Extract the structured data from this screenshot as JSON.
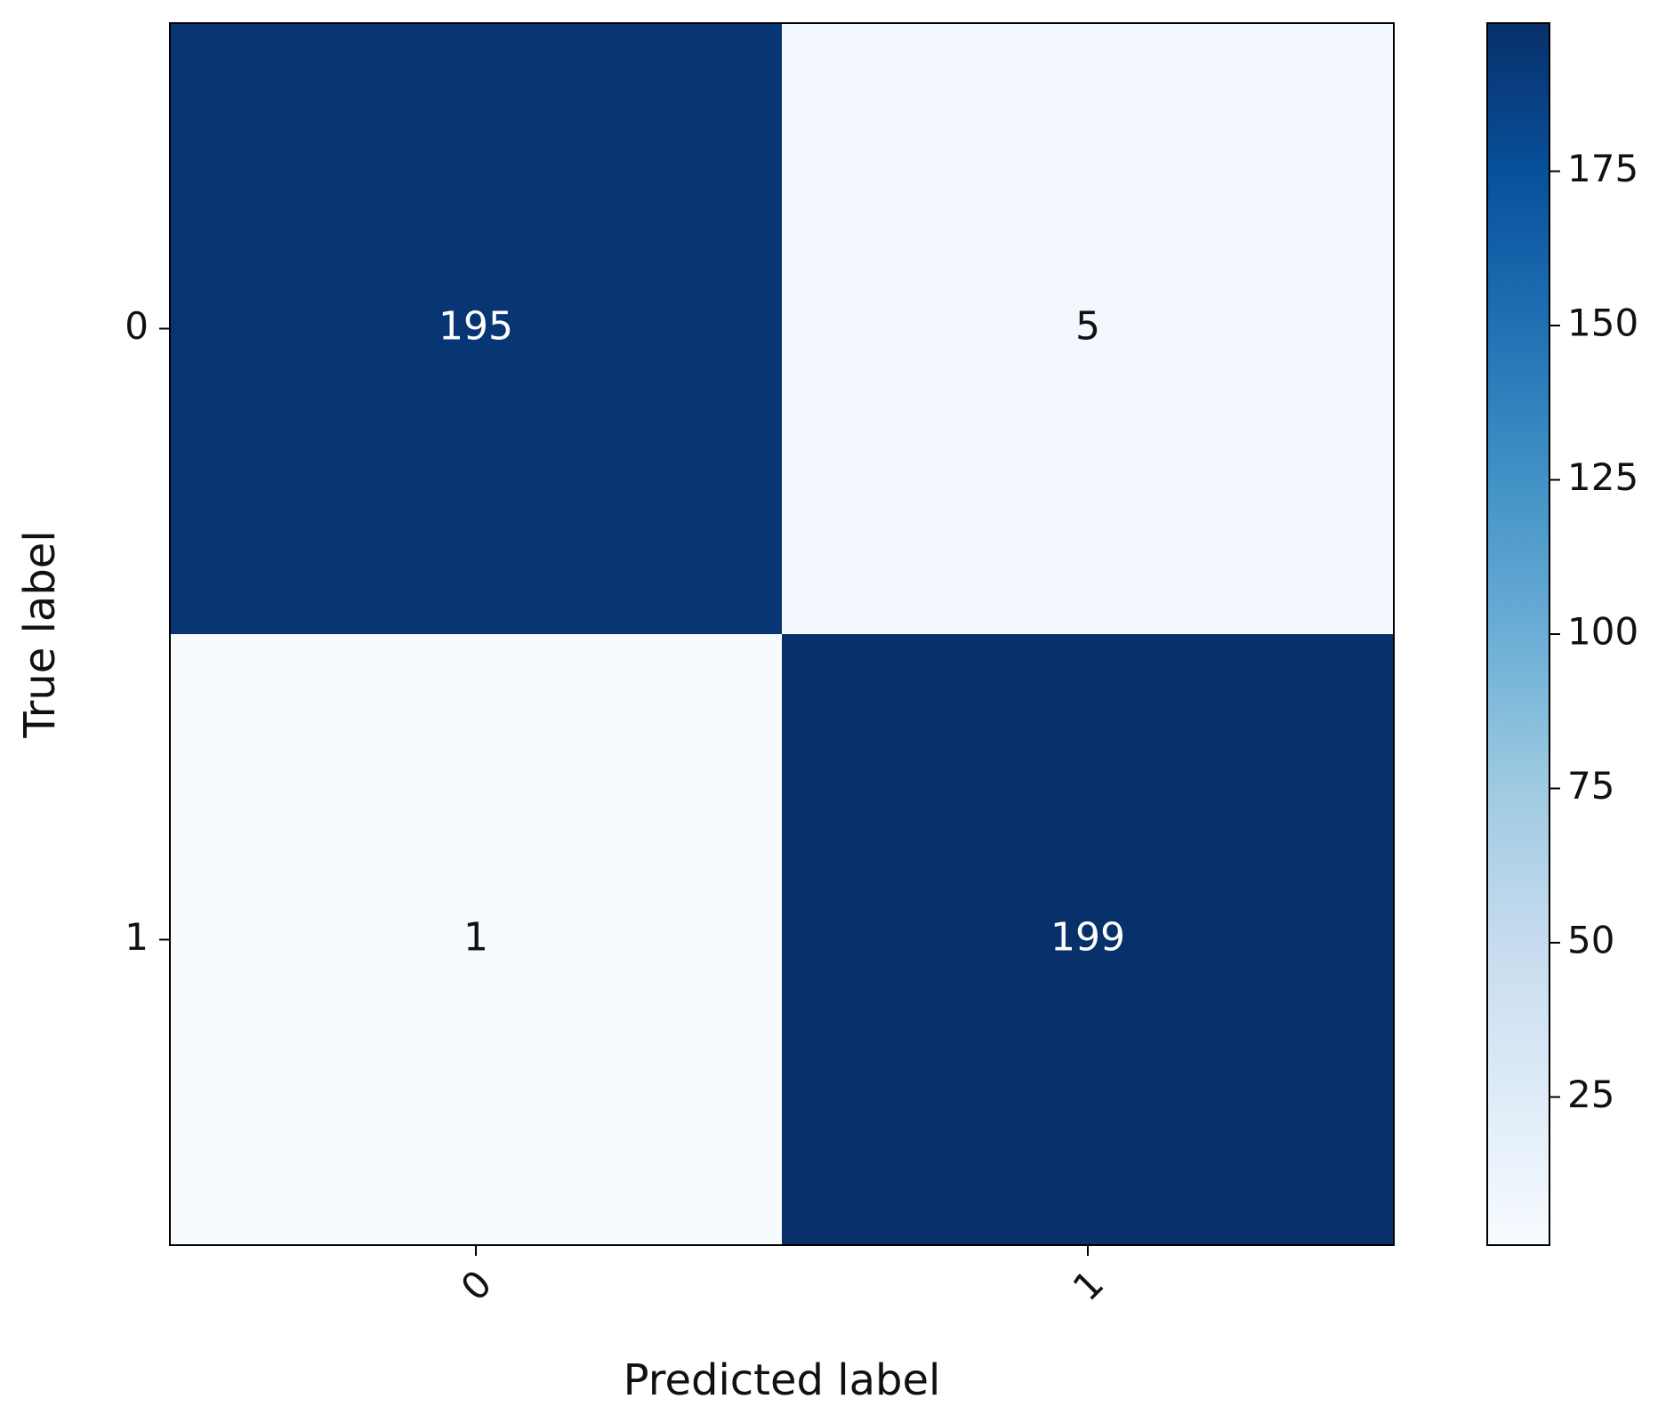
{
  "chart_data": {
    "type": "heatmap",
    "x_categories": [
      "0",
      "1"
    ],
    "y_categories": [
      "0",
      "1"
    ],
    "values": [
      [
        195,
        5
      ],
      [
        1,
        199
      ]
    ],
    "colormap": "Blues",
    "clim": [
      1,
      199
    ],
    "cticks": [
      25,
      50,
      75,
      100,
      125,
      150,
      175
    ],
    "xlabel": "Predicted label",
    "ylabel": "True label"
  }
}
